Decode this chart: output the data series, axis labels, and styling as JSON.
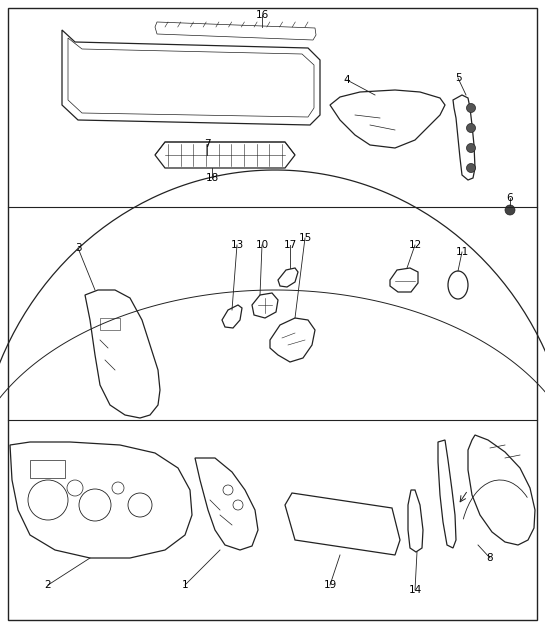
{
  "bg_color": "#ffffff",
  "line_color": "#222222",
  "fig_width": 5.45,
  "fig_height": 6.28,
  "dpi": 100
}
